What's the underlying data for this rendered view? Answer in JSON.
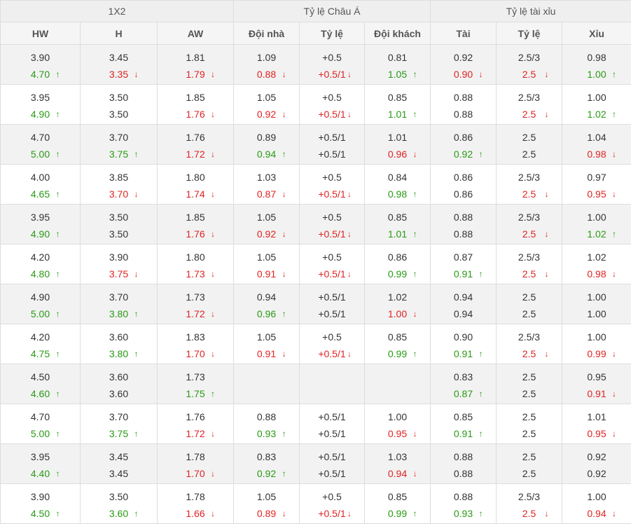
{
  "groups": {
    "x12": "1X2",
    "asian": "Tỷ lệ Châu Á",
    "ou": "Tỷ lệ tài xỉu"
  },
  "headers": [
    "HW",
    "H",
    "AW",
    "Đội nhà",
    "Tỷ lệ",
    "Đội khách",
    "Tài",
    "Tỷ lệ",
    "Xỉu"
  ],
  "icons": {
    "up": "arrow-up-icon",
    "down": "arrow-down-icon"
  },
  "colors": {
    "up": "#279a12",
    "down": "#e02222",
    "alt_row": "#f2f2f2"
  },
  "rows": [
    [
      [
        "3.90",
        "4.70",
        "up"
      ],
      [
        "3.45",
        "3.35",
        "down"
      ],
      [
        "1.81",
        "1.79",
        "down"
      ],
      [
        "1.09",
        "0.88",
        "down"
      ],
      [
        "+0.5",
        "+0.5/1",
        "down"
      ],
      [
        "0.81",
        "1.05",
        "up"
      ],
      [
        "0.92",
        "0.90",
        "down"
      ],
      [
        "2.5/3",
        "2.5",
        "down"
      ],
      [
        "0.98",
        "1.00",
        "up"
      ]
    ],
    [
      [
        "3.95",
        "4.90",
        "up"
      ],
      [
        "3.50",
        "3.50",
        "flat"
      ],
      [
        "1.85",
        "1.76",
        "down"
      ],
      [
        "1.05",
        "0.92",
        "down"
      ],
      [
        "+0.5",
        "+0.5/1",
        "down"
      ],
      [
        "0.85",
        "1.01",
        "up"
      ],
      [
        "0.88",
        "0.88",
        "flat"
      ],
      [
        "2.5/3",
        "2.5",
        "down"
      ],
      [
        "1.00",
        "1.02",
        "up"
      ]
    ],
    [
      [
        "4.70",
        "5.00",
        "up"
      ],
      [
        "3.70",
        "3.75",
        "up"
      ],
      [
        "1.76",
        "1.72",
        "down"
      ],
      [
        "0.89",
        "0.94",
        "up"
      ],
      [
        "+0.5/1",
        "+0.5/1",
        "flat"
      ],
      [
        "1.01",
        "0.96",
        "down"
      ],
      [
        "0.86",
        "0.92",
        "up"
      ],
      [
        "2.5",
        "2.5",
        "flat"
      ],
      [
        "1.04",
        "0.98",
        "down"
      ]
    ],
    [
      [
        "4.00",
        "4.65",
        "up"
      ],
      [
        "3.85",
        "3.70",
        "down"
      ],
      [
        "1.80",
        "1.74",
        "down"
      ],
      [
        "1.03",
        "0.87",
        "down"
      ],
      [
        "+0.5",
        "+0.5/1",
        "down"
      ],
      [
        "0.84",
        "0.98",
        "up"
      ],
      [
        "0.86",
        "0.86",
        "flat"
      ],
      [
        "2.5/3",
        "2.5",
        "down"
      ],
      [
        "0.97",
        "0.95",
        "down"
      ]
    ],
    [
      [
        "3.95",
        "4.90",
        "up"
      ],
      [
        "3.50",
        "3.50",
        "flat"
      ],
      [
        "1.85",
        "1.76",
        "down"
      ],
      [
        "1.05",
        "0.92",
        "down"
      ],
      [
        "+0.5",
        "+0.5/1",
        "down"
      ],
      [
        "0.85",
        "1.01",
        "up"
      ],
      [
        "0.88",
        "0.88",
        "flat"
      ],
      [
        "2.5/3",
        "2.5",
        "down"
      ],
      [
        "1.00",
        "1.02",
        "up"
      ]
    ],
    [
      [
        "4.20",
        "4.80",
        "up"
      ],
      [
        "3.90",
        "3.75",
        "down"
      ],
      [
        "1.80",
        "1.73",
        "down"
      ],
      [
        "1.05",
        "0.91",
        "down"
      ],
      [
        "+0.5",
        "+0.5/1",
        "down"
      ],
      [
        "0.86",
        "0.99",
        "up"
      ],
      [
        "0.87",
        "0.91",
        "up"
      ],
      [
        "2.5/3",
        "2.5",
        "down"
      ],
      [
        "1.02",
        "0.98",
        "down"
      ]
    ],
    [
      [
        "4.90",
        "5.00",
        "up"
      ],
      [
        "3.70",
        "3.80",
        "up"
      ],
      [
        "1.73",
        "1.72",
        "down"
      ],
      [
        "0.94",
        "0.96",
        "up"
      ],
      [
        "+0.5/1",
        "+0.5/1",
        "flat"
      ],
      [
        "1.02",
        "1.00",
        "down"
      ],
      [
        "0.94",
        "0.94",
        "flat"
      ],
      [
        "2.5",
        "2.5",
        "flat"
      ],
      [
        "1.00",
        "1.00",
        "flat"
      ]
    ],
    [
      [
        "4.20",
        "4.75",
        "up"
      ],
      [
        "3.60",
        "3.80",
        "up"
      ],
      [
        "1.83",
        "1.70",
        "down"
      ],
      [
        "1.05",
        "0.91",
        "down"
      ],
      [
        "+0.5",
        "+0.5/1",
        "down"
      ],
      [
        "0.85",
        "0.99",
        "up"
      ],
      [
        "0.90",
        "0.91",
        "up"
      ],
      [
        "2.5/3",
        "2.5",
        "down"
      ],
      [
        "1.00",
        "0.99",
        "down"
      ]
    ],
    [
      [
        "4.50",
        "4.60",
        "up"
      ],
      [
        "3.60",
        "3.60",
        "flat"
      ],
      [
        "1.73",
        "1.75",
        "up"
      ],
      [
        "",
        "",
        "flat"
      ],
      [
        "",
        "",
        "flat"
      ],
      [
        "",
        "",
        "flat"
      ],
      [
        "0.83",
        "0.87",
        "up"
      ],
      [
        "2.5",
        "2.5",
        "flat"
      ],
      [
        "0.95",
        "0.91",
        "down"
      ]
    ],
    [
      [
        "4.70",
        "5.00",
        "up"
      ],
      [
        "3.70",
        "3.75",
        "up"
      ],
      [
        "1.76",
        "1.72",
        "down"
      ],
      [
        "0.88",
        "0.93",
        "up"
      ],
      [
        "+0.5/1",
        "+0.5/1",
        "flat"
      ],
      [
        "1.00",
        "0.95",
        "down"
      ],
      [
        "0.85",
        "0.91",
        "up"
      ],
      [
        "2.5",
        "2.5",
        "flat"
      ],
      [
        "1.01",
        "0.95",
        "down"
      ]
    ],
    [
      [
        "3.95",
        "4.40",
        "up"
      ],
      [
        "3.45",
        "3.45",
        "flat"
      ],
      [
        "1.78",
        "1.70",
        "down"
      ],
      [
        "0.83",
        "0.92",
        "up"
      ],
      [
        "+0.5/1",
        "+0.5/1",
        "flat"
      ],
      [
        "1.03",
        "0.94",
        "down"
      ],
      [
        "0.88",
        "0.88",
        "flat"
      ],
      [
        "2.5",
        "2.5",
        "flat"
      ],
      [
        "0.92",
        "0.92",
        "flat"
      ]
    ],
    [
      [
        "3.90",
        "4.50",
        "up"
      ],
      [
        "3.50",
        "3.60",
        "up"
      ],
      [
        "1.78",
        "1.66",
        "down"
      ],
      [
        "1.05",
        "0.89",
        "down"
      ],
      [
        "+0.5",
        "+0.5/1",
        "down"
      ],
      [
        "0.85",
        "0.99",
        "up"
      ],
      [
        "0.88",
        "0.93",
        "up"
      ],
      [
        "2.5/3",
        "2.5",
        "down"
      ],
      [
        "1.00",
        "0.94",
        "down"
      ]
    ]
  ]
}
